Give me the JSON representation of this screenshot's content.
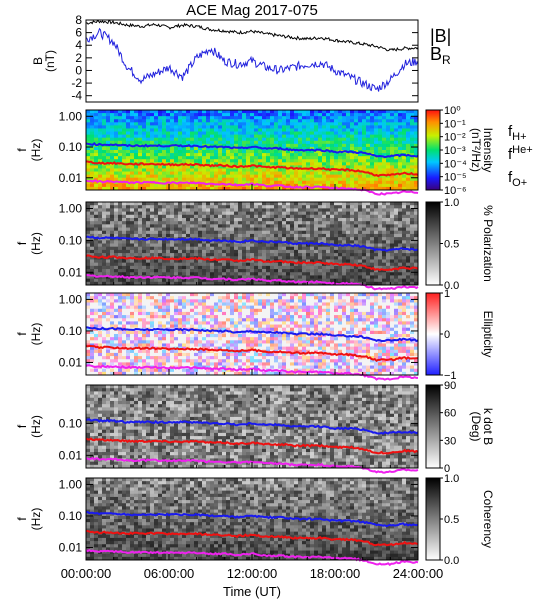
{
  "chart_data": [
    {
      "type": "line",
      "title": "ACE Mag 2017-075",
      "ylabel": "B",
      "yunit": "(nT)",
      "ylim": [
        -5,
        8
      ],
      "yticks": [
        -4,
        -2,
        0,
        2,
        4,
        6,
        8
      ],
      "xlim_hours": [
        0,
        24
      ],
      "series": [
        {
          "name": "|B|",
          "color": "#000000",
          "x": [
            0,
            1,
            2,
            3,
            4,
            5,
            6,
            7,
            8,
            9,
            10,
            11,
            12,
            13,
            14,
            15,
            16,
            17,
            18,
            19,
            20,
            21,
            22,
            23,
            24
          ],
          "values": [
            7.5,
            7.8,
            7.6,
            7.2,
            7.0,
            7.3,
            6.8,
            7.2,
            7.0,
            6.5,
            6.3,
            6.0,
            6.2,
            5.8,
            5.5,
            5.2,
            5.0,
            5.2,
            4.8,
            4.5,
            4.2,
            3.8,
            3.2,
            3.5,
            3.6
          ]
        },
        {
          "name": "B",
          "sub": "R",
          "color": "#2222dd",
          "x": [
            0,
            1,
            2,
            3,
            4,
            5,
            6,
            7,
            8,
            9,
            10,
            11,
            12,
            13,
            14,
            15,
            16,
            17,
            18,
            19,
            20,
            21,
            22,
            23,
            24
          ],
          "values": [
            5.0,
            6.0,
            4.5,
            0.5,
            -1.5,
            -0.5,
            0.5,
            -1.0,
            2.0,
            3.5,
            1.5,
            1.0,
            1.5,
            0.5,
            0.0,
            0.5,
            1.0,
            1.2,
            0.0,
            -1.0,
            -2.0,
            -3.0,
            -1.5,
            1.0,
            1.5
          ]
        }
      ]
    },
    {
      "type": "heatmap",
      "ylabel": "f",
      "yunit": "(Hz)",
      "yticks": [
        "1.00",
        "0.10",
        "0.01"
      ],
      "colorbar": {
        "label": "Intensity",
        "unit": "(nT²/Hz)",
        "ticks": [
          "10⁰",
          "10⁻¹",
          "10⁻²",
          "10⁻³",
          "10⁻⁴",
          "10⁻⁵",
          "10⁻⁶"
        ],
        "scale": "rainbow"
      },
      "legend": [
        {
          "text": "f",
          "sub": "H+",
          "color": "#2222cc"
        },
        {
          "text": "f",
          "sup": "He+",
          "color": "#cc1111"
        },
        {
          "text": "f",
          "sub": "O+",
          "color": "#dd22dd"
        }
      ]
    },
    {
      "type": "heatmap",
      "ylabel": "f",
      "yunit": "(Hz)",
      "yticks": [
        "1.00",
        "0.10",
        "0.01"
      ],
      "colorbar": {
        "label": "% Polarization",
        "ticks": [
          "1.0",
          "0.5",
          "0.0"
        ],
        "scale": "gray"
      }
    },
    {
      "type": "heatmap",
      "ylabel": "f",
      "yunit": "(Hz)",
      "yticks": [
        "1.00",
        "0.10",
        "0.01"
      ],
      "colorbar": {
        "label": "Ellipticity",
        "ticks": [
          "1",
          "0",
          "−1"
        ],
        "scale": "red-white-blue"
      }
    },
    {
      "type": "heatmap",
      "ylabel": "f",
      "yunit": "(Hz)",
      "yticks": [
        "0.10",
        "0.01"
      ],
      "colorbar": {
        "label": "k dot B",
        "unit": "(Deg)",
        "ticks": [
          "90",
          "60",
          "30",
          "0"
        ],
        "scale": "gray"
      }
    },
    {
      "type": "heatmap",
      "ylabel": "f",
      "yunit": "(Hz)",
      "yticks": [
        "1.00",
        "0.10",
        "0.01"
      ],
      "xlabel": "Time (UT)",
      "xticks": [
        "00:00:00",
        "06:00:00",
        "12:00:00",
        "18:00:00",
        "24:00:00"
      ],
      "colorbar": {
        "label": "Coherency",
        "ticks": [
          "1.0",
          "0.5",
          "0.0"
        ],
        "scale": "gray"
      }
    }
  ],
  "ion_frequencies": {
    "x_hours": [
      0,
      1,
      2,
      3,
      4,
      5,
      6,
      7,
      8,
      9,
      10,
      11,
      12,
      13,
      14,
      15,
      16,
      17,
      18,
      19,
      20,
      21,
      22,
      23,
      24
    ],
    "H": [
      0.13,
      0.12,
      0.12,
      0.11,
      0.11,
      0.11,
      0.11,
      0.11,
      0.11,
      0.1,
      0.1,
      0.09,
      0.1,
      0.09,
      0.09,
      0.08,
      0.08,
      0.08,
      0.07,
      0.07,
      0.065,
      0.05,
      0.05,
      0.055,
      0.05
    ],
    "He": [
      0.033,
      0.03,
      0.03,
      0.028,
      0.028,
      0.028,
      0.027,
      0.027,
      0.027,
      0.025,
      0.025,
      0.023,
      0.025,
      0.022,
      0.022,
      0.02,
      0.02,
      0.02,
      0.018,
      0.018,
      0.016,
      0.012,
      0.012,
      0.014,
      0.013
    ],
    "O": [
      0.008,
      0.0075,
      0.0075,
      0.007,
      0.007,
      0.007,
      0.0068,
      0.0068,
      0.0068,
      0.0063,
      0.0063,
      0.0058,
      0.0063,
      0.0055,
      0.0055,
      0.005,
      0.005,
      0.005,
      0.0045,
      0.0045,
      0.004,
      0.003,
      0.003,
      0.0035,
      0.0033
    ]
  }
}
